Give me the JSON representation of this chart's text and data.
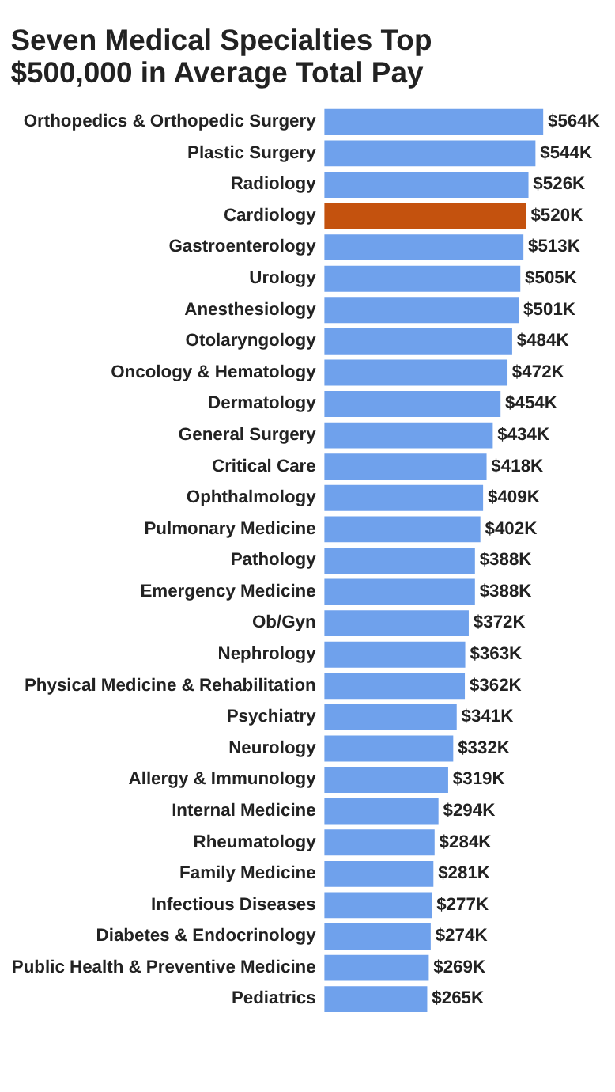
{
  "chart_data": {
    "type": "bar",
    "orientation": "horizontal",
    "title": "Seven Medical Specialties Top $500,000 in Average Total Pay",
    "categories": [
      "Orthopedics & Orthopedic Surgery",
      "Plastic Surgery",
      "Radiology",
      "Cardiology",
      "Gastroenterology",
      "Urology",
      "Anesthesiology",
      "Otolaryngology",
      "Oncology & Hematology",
      "Dermatology",
      "General Surgery",
      "Critical Care",
      "Ophthalmology",
      "Pulmonary Medicine",
      "Pathology",
      "Emergency Medicine",
      "Ob/Gyn",
      "Nephrology",
      "Physical Medicine & Rehabilitation",
      "Psychiatry",
      "Neurology",
      "Allergy & Immunology",
      "Internal Medicine",
      "Rheumatology",
      "Family Medicine",
      "Infectious Diseases",
      "Diabetes & Endocrinology",
      "Public Health & Preventive Medicine",
      "Pediatrics"
    ],
    "values": [
      564,
      544,
      526,
      520,
      513,
      505,
      501,
      484,
      472,
      454,
      434,
      418,
      409,
      402,
      388,
      388,
      372,
      363,
      362,
      341,
      332,
      319,
      294,
      284,
      281,
      277,
      274,
      269,
      265
    ],
    "value_labels": [
      "$564K",
      "$544K",
      "$526K",
      "$520K",
      "$513K",
      "$505K",
      "$501K",
      "$484K",
      "$472K",
      "$454K",
      "$434K",
      "$418K",
      "$409K",
      "$402K",
      "$388K",
      "$388K",
      "$372K",
      "$363K",
      "$362K",
      "$341K",
      "$332K",
      "$319K",
      "$294K",
      "$284K",
      "$281K",
      "$277K",
      "$274K",
      "$269K",
      "$265K"
    ],
    "colors": [
      "#6fa1ec",
      "#6fa1ec",
      "#6fa1ec",
      "#c4520e",
      "#6fa1ec",
      "#6fa1ec",
      "#6fa1ec",
      "#6fa1ec",
      "#6fa1ec",
      "#6fa1ec",
      "#6fa1ec",
      "#6fa1ec",
      "#6fa1ec",
      "#6fa1ec",
      "#6fa1ec",
      "#6fa1ec",
      "#6fa1ec",
      "#6fa1ec",
      "#6fa1ec",
      "#6fa1ec",
      "#6fa1ec",
      "#6fa1ec",
      "#6fa1ec",
      "#6fa1ec",
      "#6fa1ec",
      "#6fa1ec",
      "#6fa1ec",
      "#6fa1ec",
      "#6fa1ec"
    ],
    "tick_labels": "y"
  }
}
